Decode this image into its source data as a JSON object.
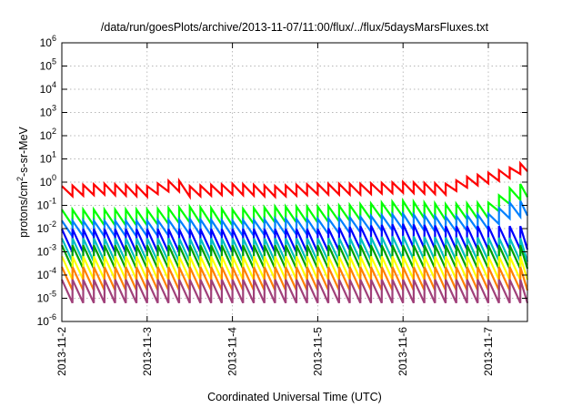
{
  "chart_data": {
    "type": "line",
    "title": "/data/run/goesPlots/archive/2013-11-07/11:00/flux/../flux/5daysMarsFluxes.txt",
    "xlabel": "Coordinated Universal Time (UTC)",
    "ylabel": "protons/cm2-s-sr-MeV",
    "ylabel_parts": {
      "pre": "protons/cm",
      "sup": "2",
      "post": "-s-sr-MeV"
    },
    "x_scale": "time",
    "y_scale": "log",
    "xlim": [
      "2013-11-02T00:00",
      "2013-11-07T11:00"
    ],
    "ylim": [
      1e-06,
      1000000.0
    ],
    "grid": true,
    "legend": "none",
    "x_ticks": [
      "2013-11-2",
      "2013-11-3",
      "2013-11-4",
      "2013-11-5",
      "2013-11-6",
      "2013-11-7"
    ],
    "y_ticks": [
      {
        "base": "10",
        "exp": "-6"
      },
      {
        "base": "10",
        "exp": "-5"
      },
      {
        "base": "10",
        "exp": "-4"
      },
      {
        "base": "10",
        "exp": "-3"
      },
      {
        "base": "10",
        "exp": "-2"
      },
      {
        "base": "10",
        "exp": "-1"
      },
      {
        "base": "10",
        "exp": "0"
      },
      {
        "base": "10",
        "exp": "1"
      },
      {
        "base": "10",
        "exp": "2"
      },
      {
        "base": "10",
        "exp": "3"
      },
      {
        "base": "10",
        "exp": "4"
      },
      {
        "base": "10",
        "exp": "5"
      },
      {
        "base": "10",
        "exp": "6"
      }
    ],
    "series": [
      {
        "color": "#ff0000",
        "x": [
          "2013-11-02T00:00",
          "2013-11-02T12:00",
          "2013-11-03T00:00",
          "2013-11-03T08:00",
          "2013-11-03T12:00",
          "2013-11-04T00:00",
          "2013-11-04T12:00",
          "2013-11-05T00:00",
          "2013-11-05T12:00",
          "2013-11-06T00:00",
          "2013-11-06T12:00",
          "2013-11-06T18:00",
          "2013-11-07T00:00",
          "2013-11-07T06:00",
          "2013-11-07T11:00"
        ],
        "y": [
          0.4,
          0.5,
          0.4,
          0.8,
          0.4,
          0.5,
          0.4,
          0.5,
          0.5,
          0.6,
          0.5,
          1.0,
          1.5,
          2.5,
          5.0
        ]
      },
      {
        "color": "#00ff00",
        "x": [
          "2013-11-02T00:00",
          "2013-11-02T12:00",
          "2013-11-03T00:00",
          "2013-11-03T12:00",
          "2013-11-04T00:00",
          "2013-11-04T12:00",
          "2013-11-05T00:00",
          "2013-11-05T12:00",
          "2013-11-06T00:00",
          "2013-11-06T12:00",
          "2013-11-07T00:00",
          "2013-11-07T06:00",
          "2013-11-07T11:00"
        ],
        "y": [
          0.03,
          0.03,
          0.03,
          0.04,
          0.03,
          0.04,
          0.04,
          0.05,
          0.07,
          0.05,
          0.06,
          0.25,
          0.5
        ]
      },
      {
        "color": "#0080ff",
        "x": [
          "2013-11-02T00:00",
          "2013-11-02T12:00",
          "2013-11-03T00:00",
          "2013-11-03T12:00",
          "2013-11-04T00:00",
          "2013-11-04T12:00",
          "2013-11-05T00:00",
          "2013-11-05T12:00",
          "2013-11-06T00:00",
          "2013-11-06T12:00",
          "2013-11-07T00:00",
          "2013-11-07T06:00",
          "2013-11-07T11:00"
        ],
        "y": [
          0.01,
          0.01,
          0.01,
          0.012,
          0.01,
          0.012,
          0.012,
          0.015,
          0.02,
          0.015,
          0.02,
          0.06,
          0.08
        ]
      },
      {
        "color": "#0000ff",
        "x": [
          "2013-11-02T00:00",
          "2013-11-02T12:00",
          "2013-11-03T00:00",
          "2013-11-03T12:00",
          "2013-11-04T00:00",
          "2013-11-04T12:00",
          "2013-11-05T00:00",
          "2013-11-05T12:00",
          "2013-11-06T00:00",
          "2013-11-06T12:00",
          "2013-11-07T00:00",
          "2013-11-07T11:00"
        ],
        "y": [
          0.003,
          0.003,
          0.003,
          0.003,
          0.003,
          0.003,
          0.003,
          0.004,
          0.005,
          0.004,
          0.004,
          0.004
        ]
      },
      {
        "color": "#00c0c0",
        "x": [
          "2013-11-02T00:00",
          "2013-11-02T12:00",
          "2013-11-03T00:00",
          "2013-11-03T12:00",
          "2013-11-04T00:00",
          "2013-11-04T12:00",
          "2013-11-05T00:00",
          "2013-11-05T12:00",
          "2013-11-06T00:00",
          "2013-11-06T12:00",
          "2013-11-07T00:00",
          "2013-11-07T11:00"
        ],
        "y": [
          0.0012,
          0.0012,
          0.0012,
          0.0012,
          0.0012,
          0.0012,
          0.0012,
          0.0013,
          0.0015,
          0.0013,
          0.0013,
          0.0012
        ]
      },
      {
        "color": "#00a000",
        "x": [
          "2013-11-02T00:00",
          "2013-11-03T00:00",
          "2013-11-04T00:00",
          "2013-11-05T00:00",
          "2013-11-06T00:00",
          "2013-11-07T00:00",
          "2013-11-07T11:00"
        ],
        "y": [
          0.0006,
          0.0006,
          0.0006,
          0.0006,
          0.0006,
          0.0006,
          0.0006
        ]
      },
      {
        "color": "#ffff00",
        "x": [
          "2013-11-02T00:00",
          "2013-11-03T00:00",
          "2013-11-04T00:00",
          "2013-11-05T00:00",
          "2013-11-06T00:00",
          "2013-11-07T00:00",
          "2013-11-07T11:00"
        ],
        "y": [
          0.0002,
          0.0002,
          0.0002,
          0.0002,
          0.0002,
          0.0002,
          0.0002
        ]
      },
      {
        "color": "#ff8000",
        "x": [
          "2013-11-02T00:00",
          "2013-11-03T00:00",
          "2013-11-04T00:00",
          "2013-11-05T00:00",
          "2013-11-06T00:00",
          "2013-11-07T00:00",
          "2013-11-07T11:00"
        ],
        "y": [
          7e-05,
          7e-05,
          7e-05,
          7e-05,
          7e-05,
          7e-05,
          7e-05
        ]
      },
      {
        "color": "#a0407a",
        "x": [
          "2013-11-02T00:00",
          "2013-11-03T00:00",
          "2013-11-04T00:00",
          "2013-11-05T00:00",
          "2013-11-06T00:00",
          "2013-11-07T00:00",
          "2013-11-07T11:00"
        ],
        "y": [
          2e-05,
          2e-05,
          2e-05,
          2e-05,
          2e-05,
          2e-05,
          2e-05
        ]
      }
    ]
  }
}
